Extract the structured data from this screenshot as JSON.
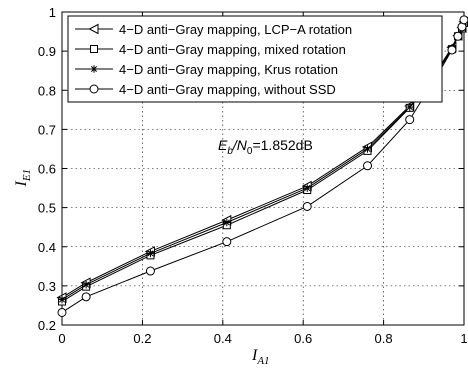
{
  "chart_data": {
    "type": "line",
    "title": "",
    "xlabel": {
      "main": "I",
      "sub": "A1"
    },
    "ylabel": {
      "main": "I",
      "sub": "E1"
    },
    "xlim": [
      0,
      1
    ],
    "ylim": [
      0.2,
      1
    ],
    "xticks": [
      0,
      0.2,
      0.4,
      0.6,
      0.8,
      1
    ],
    "yticks": [
      0.2,
      0.3,
      0.4,
      0.5,
      0.6,
      0.7,
      0.8,
      0.9,
      1
    ],
    "xtick_labels": [
      "0",
      "0.2",
      "0.4",
      "0.6",
      "0.8",
      "1"
    ],
    "ytick_labels": [
      "0.2",
      "0.3",
      "0.4",
      "0.5",
      "0.6",
      "0.7",
      "0.8",
      "0.9",
      "1"
    ],
    "grid": true,
    "legend_position": "top-left",
    "annotation": {
      "prefix": "E",
      "sub1": "b",
      "mid": "/N",
      "sub2": "0",
      "suffix": "=1.852dB"
    },
    "series": [
      {
        "name": "4−D anti−Gray mapping, LCP−A rotation",
        "marker": "triangle-left",
        "x": [
          0,
          0.06,
          0.22,
          0.41,
          0.61,
          0.76,
          0.865,
          0.93,
          0.97,
          0.985,
          0.995,
          1.0
        ],
        "y": [
          0.27,
          0.308,
          0.388,
          0.468,
          0.555,
          0.655,
          0.76,
          0.845,
          0.91,
          0.94,
          0.96,
          0.975
        ]
      },
      {
        "name": "4−D anti−Gray mapping, mixed rotation",
        "marker": "square",
        "x": [
          0,
          0.06,
          0.22,
          0.41,
          0.61,
          0.76,
          0.865,
          0.93,
          0.97,
          0.985,
          0.995,
          1.0
        ],
        "y": [
          0.26,
          0.298,
          0.378,
          0.455,
          0.545,
          0.645,
          0.755,
          0.84,
          0.905,
          0.938,
          0.958,
          0.972
        ]
      },
      {
        "name": "4−D anti−Gray mapping, Krus rotation",
        "marker": "asterisk",
        "x": [
          0,
          0.06,
          0.22,
          0.41,
          0.61,
          0.76,
          0.865,
          0.93,
          0.97,
          0.985,
          0.995,
          1.0
        ],
        "y": [
          0.265,
          0.303,
          0.383,
          0.462,
          0.55,
          0.65,
          0.757,
          0.842,
          0.907,
          0.939,
          0.959,
          0.973
        ]
      },
      {
        "name": "4−D anti−Gray mapping, without SSD",
        "marker": "circle",
        "x": [
          0,
          0.06,
          0.22,
          0.41,
          0.61,
          0.76,
          0.865,
          0.93,
          0.97,
          0.985,
          0.995,
          1.0
        ],
        "y": [
          0.232,
          0.272,
          0.338,
          0.413,
          0.503,
          0.607,
          0.725,
          0.832,
          0.903,
          0.938,
          0.962,
          0.98
        ]
      }
    ]
  }
}
